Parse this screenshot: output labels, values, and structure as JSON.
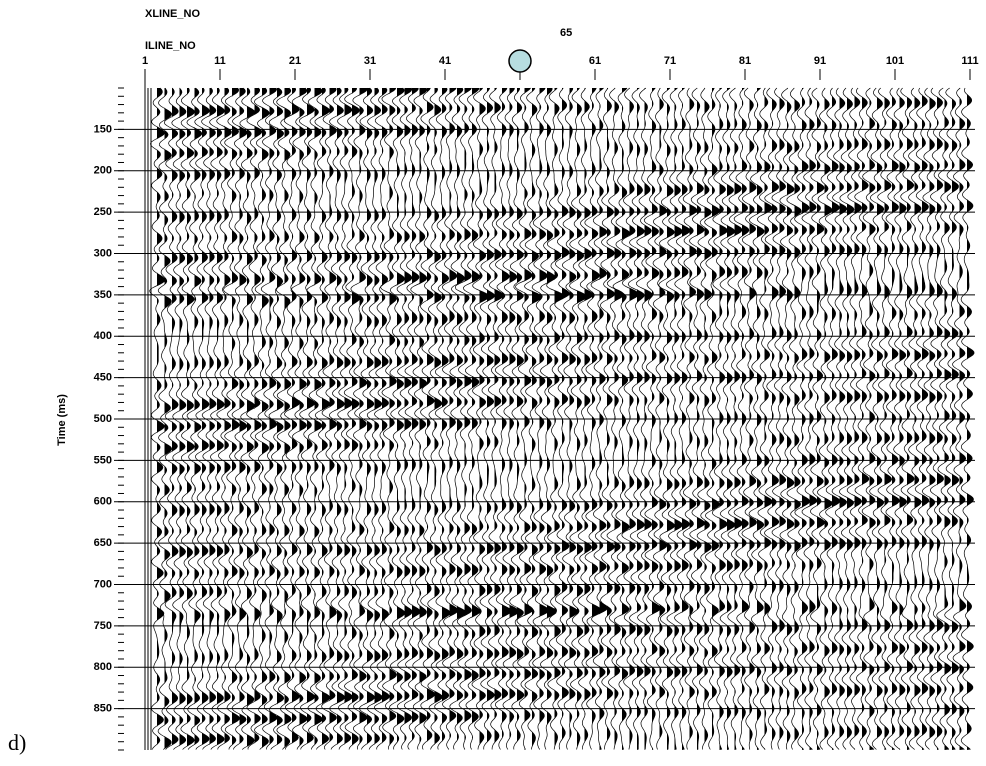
{
  "panel_label": "d)",
  "xline": {
    "title": "XLINE_NO",
    "value": 65
  },
  "x_axis": {
    "title": "ILINE_NO",
    "lim": [
      1,
      111
    ],
    "ticks": [
      1,
      11,
      21,
      31,
      41,
      61,
      71,
      81,
      91,
      101,
      111
    ]
  },
  "y_axis": {
    "title": "Time (ms)",
    "lim": [
      100,
      900
    ],
    "ticks": [
      150,
      200,
      250,
      300,
      350,
      400,
      450,
      500,
      550,
      600,
      650,
      700,
      750,
      800,
      850
    ]
  }
}
